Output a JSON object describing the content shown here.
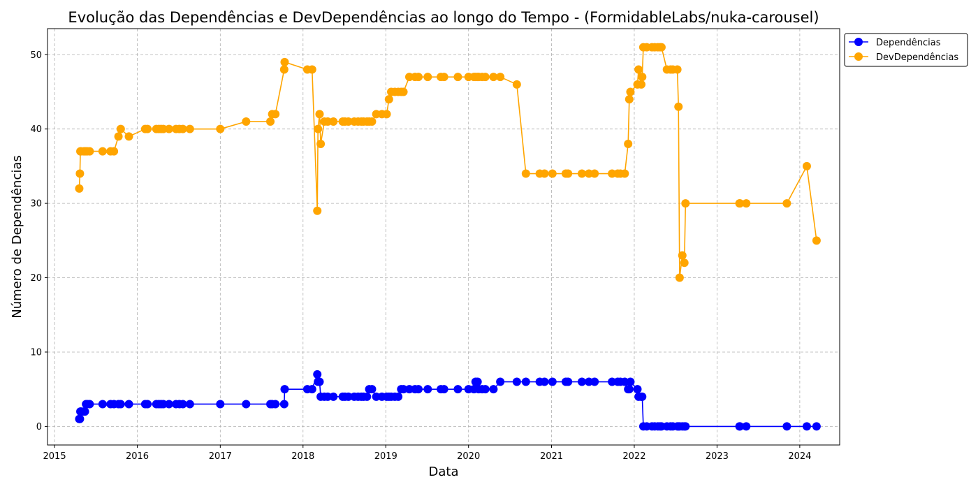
{
  "chart_data": {
    "type": "line",
    "title": "Evolução das Dependências e DevDependências ao longo do Tempo - (FormidableLabs/nuka-carousel)",
    "xlabel": "Data",
    "ylabel": "Número de Dependências",
    "xlim": [
      "2014-12-01",
      "2024-06-25"
    ],
    "ylim": [
      -2.5,
      53.5
    ],
    "x_ticks": [
      "2015",
      "2016",
      "2017",
      "2018",
      "2019",
      "2020",
      "2021",
      "2022",
      "2023",
      "2024"
    ],
    "y_ticks": [
      0,
      10,
      20,
      30,
      40,
      50
    ],
    "grid": true,
    "legend": "upper-right-outside",
    "series": [
      {
        "name": "Dependências",
        "color": "#0000ff",
        "points": [
          [
            "2015-04-20",
            1
          ],
          [
            "2015-04-23",
            1
          ],
          [
            "2015-04-25",
            2
          ],
          [
            "2015-04-28",
            2
          ],
          [
            "2015-05-10",
            2
          ],
          [
            "2015-05-15",
            2
          ],
          [
            "2015-05-20",
            3
          ],
          [
            "2015-05-26",
            3
          ],
          [
            "2015-06-05",
            3
          ],
          [
            "2015-08-01",
            3
          ],
          [
            "2015-09-05",
            3
          ],
          [
            "2015-09-20",
            3
          ],
          [
            "2015-10-10",
            3
          ],
          [
            "2015-10-20",
            3
          ],
          [
            "2015-11-25",
            3
          ],
          [
            "2016-02-05",
            3
          ],
          [
            "2016-02-15",
            3
          ],
          [
            "2016-03-25",
            3
          ],
          [
            "2016-04-05",
            3
          ],
          [
            "2016-04-15",
            3
          ],
          [
            "2016-04-25",
            3
          ],
          [
            "2016-05-20",
            3
          ],
          [
            "2016-06-20",
            3
          ],
          [
            "2016-07-05",
            3
          ],
          [
            "2016-07-20",
            3
          ],
          [
            "2016-08-20",
            3
          ],
          [
            "2017-01-01",
            3
          ],
          [
            "2017-04-25",
            3
          ],
          [
            "2017-08-10",
            3
          ],
          [
            "2017-08-18",
            3
          ],
          [
            "2017-09-01",
            3
          ],
          [
            "2017-10-10",
            3
          ],
          [
            "2017-10-12",
            5
          ],
          [
            "2018-01-20",
            5
          ],
          [
            "2018-02-10",
            5
          ],
          [
            "2018-03-05",
            7
          ],
          [
            "2018-03-08",
            6
          ],
          [
            "2018-03-15",
            6
          ],
          [
            "2018-03-20",
            4
          ],
          [
            "2018-04-05",
            4
          ],
          [
            "2018-04-20",
            4
          ],
          [
            "2018-05-15",
            4
          ],
          [
            "2018-06-25",
            4
          ],
          [
            "2018-07-05",
            4
          ],
          [
            "2018-07-20",
            4
          ],
          [
            "2018-08-15",
            4
          ],
          [
            "2018-09-01",
            4
          ],
          [
            "2018-09-15",
            4
          ],
          [
            "2018-09-25",
            4
          ],
          [
            "2018-10-10",
            4
          ],
          [
            "2018-10-20",
            5
          ],
          [
            "2018-11-01",
            5
          ],
          [
            "2018-11-20",
            4
          ],
          [
            "2018-12-15",
            4
          ],
          [
            "2019-01-05",
            4
          ],
          [
            "2019-01-15",
            4
          ],
          [
            "2019-01-25",
            4
          ],
          [
            "2019-02-10",
            4
          ],
          [
            "2019-02-25",
            4
          ],
          [
            "2019-03-10",
            5
          ],
          [
            "2019-03-20",
            5
          ],
          [
            "2019-04-15",
            5
          ],
          [
            "2019-05-10",
            5
          ],
          [
            "2019-05-25",
            5
          ],
          [
            "2019-07-05",
            5
          ],
          [
            "2019-09-01",
            5
          ],
          [
            "2019-09-15",
            5
          ],
          [
            "2019-11-15",
            5
          ],
          [
            "2020-01-01",
            5
          ],
          [
            "2020-01-25",
            5
          ],
          [
            "2020-02-01",
            6
          ],
          [
            "2020-02-10",
            6
          ],
          [
            "2020-02-15",
            5
          ],
          [
            "2020-03-01",
            5
          ],
          [
            "2020-03-15",
            5
          ],
          [
            "2020-04-20",
            5
          ],
          [
            "2020-05-20",
            6
          ],
          [
            "2020-08-01",
            6
          ],
          [
            "2020-09-10",
            6
          ],
          [
            "2020-11-10",
            6
          ],
          [
            "2020-12-01",
            6
          ],
          [
            "2021-01-05",
            6
          ],
          [
            "2021-03-05",
            6
          ],
          [
            "2021-03-15",
            6
          ],
          [
            "2021-05-15",
            6
          ],
          [
            "2021-06-15",
            6
          ],
          [
            "2021-07-10",
            6
          ],
          [
            "2021-09-25",
            6
          ],
          [
            "2021-10-20",
            6
          ],
          [
            "2021-11-01",
            6
          ],
          [
            "2021-11-20",
            6
          ],
          [
            "2021-12-05",
            5
          ],
          [
            "2021-12-10",
            5
          ],
          [
            "2021-12-15",
            6
          ],
          [
            "2022-01-15",
            5
          ],
          [
            "2022-01-20",
            4
          ],
          [
            "2022-02-01",
            4
          ],
          [
            "2022-02-05",
            4
          ],
          [
            "2022-02-10",
            0
          ],
          [
            "2022-02-25",
            0
          ],
          [
            "2022-03-20",
            0
          ],
          [
            "2022-04-01",
            0
          ],
          [
            "2022-04-15",
            0
          ],
          [
            "2022-04-25",
            0
          ],
          [
            "2022-05-01",
            0
          ],
          [
            "2022-05-25",
            0
          ],
          [
            "2022-06-10",
            0
          ],
          [
            "2022-06-20",
            0
          ],
          [
            "2022-07-10",
            0
          ],
          [
            "2022-07-15",
            0
          ],
          [
            "2022-07-20",
            0
          ],
          [
            "2022-08-01",
            0
          ],
          [
            "2022-08-10",
            0
          ],
          [
            "2022-08-15",
            0
          ],
          [
            "2023-04-10",
            0
          ],
          [
            "2023-04-12",
            0
          ],
          [
            "2023-05-10",
            0
          ],
          [
            "2023-11-05",
            0
          ],
          [
            "2024-02-01",
            0
          ],
          [
            "2024-03-15",
            0
          ]
        ]
      },
      {
        "name": "DevDependências",
        "color": "#ffa500",
        "points": [
          [
            "2015-04-20",
            32
          ],
          [
            "2015-04-23",
            34
          ],
          [
            "2015-04-25",
            37
          ],
          [
            "2015-04-28",
            37
          ],
          [
            "2015-05-10",
            37
          ],
          [
            "2015-05-15",
            37
          ],
          [
            "2015-05-20",
            37
          ],
          [
            "2015-05-26",
            37
          ],
          [
            "2015-06-05",
            37
          ],
          [
            "2015-08-01",
            37
          ],
          [
            "2015-09-05",
            37
          ],
          [
            "2015-09-20",
            37
          ],
          [
            "2015-10-10",
            39
          ],
          [
            "2015-10-20",
            40
          ],
          [
            "2015-11-25",
            39
          ],
          [
            "2016-02-05",
            40
          ],
          [
            "2016-02-15",
            40
          ],
          [
            "2016-03-25",
            40
          ],
          [
            "2016-04-05",
            40
          ],
          [
            "2016-04-15",
            40
          ],
          [
            "2016-04-25",
            40
          ],
          [
            "2016-05-20",
            40
          ],
          [
            "2016-06-20",
            40
          ],
          [
            "2016-07-05",
            40
          ],
          [
            "2016-07-20",
            40
          ],
          [
            "2016-08-20",
            40
          ],
          [
            "2017-01-01",
            40
          ],
          [
            "2017-04-25",
            41
          ],
          [
            "2017-08-10",
            41
          ],
          [
            "2017-08-18",
            42
          ],
          [
            "2017-09-01",
            42
          ],
          [
            "2017-10-10",
            48
          ],
          [
            "2017-10-12",
            49
          ],
          [
            "2018-01-20",
            48
          ],
          [
            "2018-02-10",
            48
          ],
          [
            "2018-03-05",
            29
          ],
          [
            "2018-03-08",
            40
          ],
          [
            "2018-03-15",
            42
          ],
          [
            "2018-03-20",
            38
          ],
          [
            "2018-04-05",
            41
          ],
          [
            "2018-04-20",
            41
          ],
          [
            "2018-05-15",
            41
          ],
          [
            "2018-06-25",
            41
          ],
          [
            "2018-07-05",
            41
          ],
          [
            "2018-07-20",
            41
          ],
          [
            "2018-08-15",
            41
          ],
          [
            "2018-09-01",
            41
          ],
          [
            "2018-09-15",
            41
          ],
          [
            "2018-09-25",
            41
          ],
          [
            "2018-10-10",
            41
          ],
          [
            "2018-10-20",
            41
          ],
          [
            "2018-11-01",
            41
          ],
          [
            "2018-11-20",
            42
          ],
          [
            "2018-12-15",
            42
          ],
          [
            "2019-01-05",
            42
          ],
          [
            "2019-01-15",
            44
          ],
          [
            "2019-01-25",
            45
          ],
          [
            "2019-02-10",
            45
          ],
          [
            "2019-02-25",
            45
          ],
          [
            "2019-03-10",
            45
          ],
          [
            "2019-03-20",
            45
          ],
          [
            "2019-04-15",
            47
          ],
          [
            "2019-05-10",
            47
          ],
          [
            "2019-05-25",
            47
          ],
          [
            "2019-07-05",
            47
          ],
          [
            "2019-09-01",
            47
          ],
          [
            "2019-09-15",
            47
          ],
          [
            "2019-11-15",
            47
          ],
          [
            "2020-01-01",
            47
          ],
          [
            "2020-01-25",
            47
          ],
          [
            "2020-02-01",
            47
          ],
          [
            "2020-02-10",
            47
          ],
          [
            "2020-02-15",
            47
          ],
          [
            "2020-03-01",
            47
          ],
          [
            "2020-03-15",
            47
          ],
          [
            "2020-04-20",
            47
          ],
          [
            "2020-05-20",
            47
          ],
          [
            "2020-08-01",
            46
          ],
          [
            "2020-09-10",
            34
          ],
          [
            "2020-11-10",
            34
          ],
          [
            "2020-12-01",
            34
          ],
          [
            "2021-01-05",
            34
          ],
          [
            "2021-03-05",
            34
          ],
          [
            "2021-03-15",
            34
          ],
          [
            "2021-05-15",
            34
          ],
          [
            "2021-06-15",
            34
          ],
          [
            "2021-07-10",
            34
          ],
          [
            "2021-09-25",
            34
          ],
          [
            "2021-10-20",
            34
          ],
          [
            "2021-11-01",
            34
          ],
          [
            "2021-11-20",
            34
          ],
          [
            "2021-12-05",
            38
          ],
          [
            "2021-12-10",
            44
          ],
          [
            "2021-12-15",
            45
          ],
          [
            "2022-01-15",
            46
          ],
          [
            "2022-01-20",
            48
          ],
          [
            "2022-02-01",
            46
          ],
          [
            "2022-02-05",
            47
          ],
          [
            "2022-02-10",
            51
          ],
          [
            "2022-02-25",
            51
          ],
          [
            "2022-03-20",
            51
          ],
          [
            "2022-04-01",
            51
          ],
          [
            "2022-04-15",
            51
          ],
          [
            "2022-04-25",
            51
          ],
          [
            "2022-05-01",
            51
          ],
          [
            "2022-05-25",
            48
          ],
          [
            "2022-06-10",
            48
          ],
          [
            "2022-06-20",
            48
          ],
          [
            "2022-07-10",
            48
          ],
          [
            "2022-07-15",
            43
          ],
          [
            "2022-07-20",
            20
          ],
          [
            "2022-08-01",
            23
          ],
          [
            "2022-08-10",
            22
          ],
          [
            "2022-08-15",
            30
          ],
          [
            "2023-04-10",
            30
          ],
          [
            "2023-04-12",
            30
          ],
          [
            "2023-05-10",
            30
          ],
          [
            "2023-11-05",
            30
          ],
          [
            "2024-02-01",
            35
          ],
          [
            "2024-03-15",
            25
          ]
        ]
      }
    ]
  }
}
